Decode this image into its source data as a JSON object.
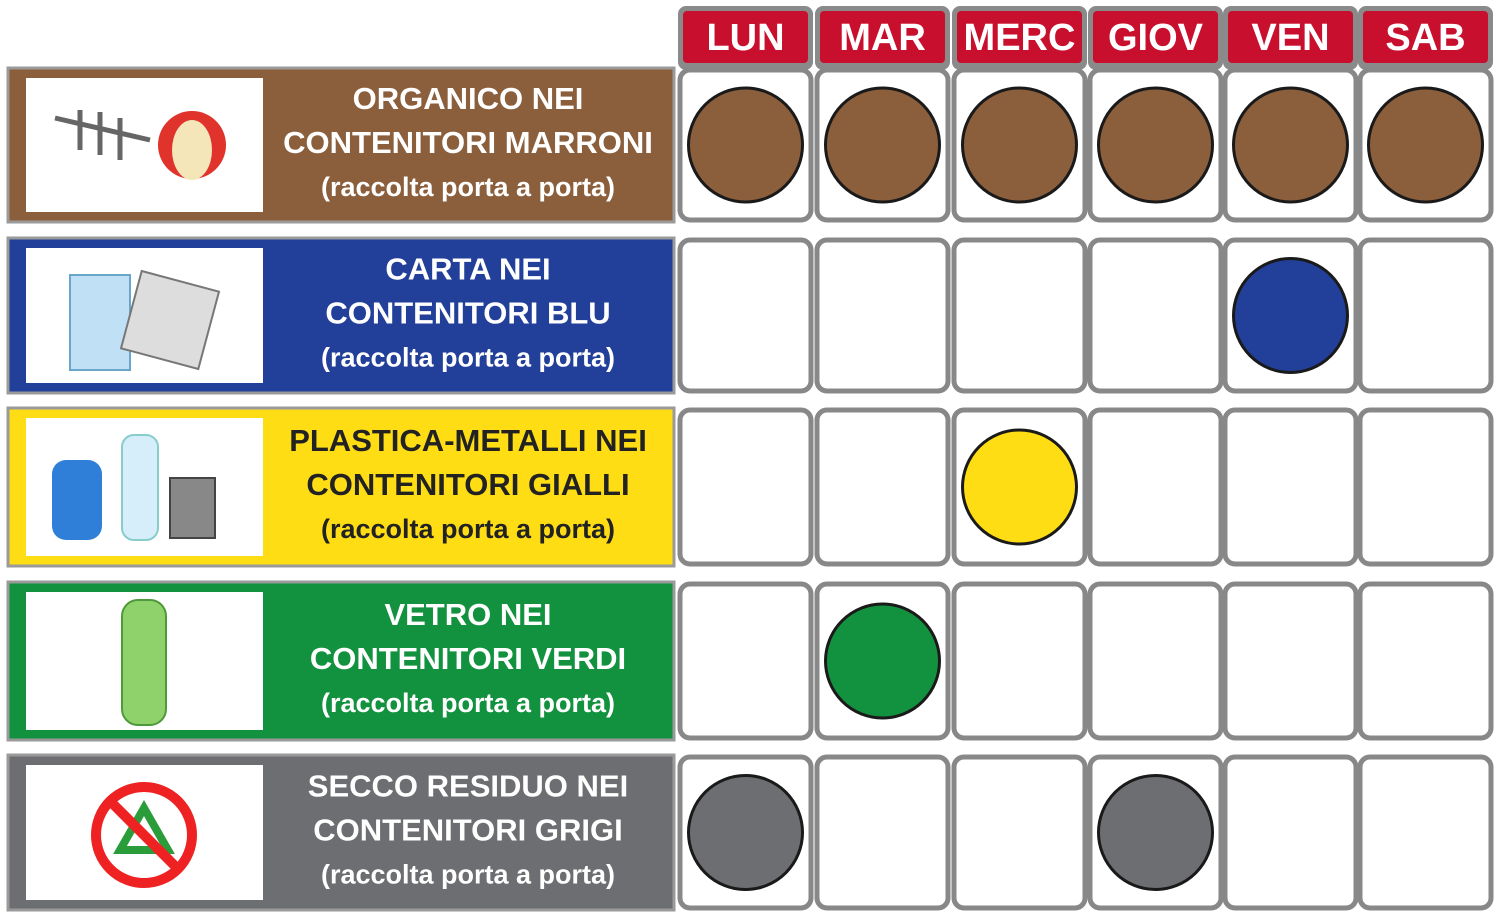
{
  "days": [
    "LUN",
    "MAR",
    "MERC",
    "GIOV",
    "VEN",
    "SAB"
  ],
  "rows": [
    {
      "lines": [
        "ORGANICO NEI",
        "CONTENITORI MARRONI"
      ],
      "note": "(raccolta porta a porta)",
      "color": "#8b5e3c",
      "text_color": "#ffffff",
      "collection": [
        true,
        true,
        true,
        true,
        true,
        true
      ]
    },
    {
      "lines": [
        "CARTA NEI",
        "CONTENITORI BLU"
      ],
      "note": "(raccolta porta a porta)",
      "color": "#223f99",
      "text_color": "#ffffff",
      "collection": [
        false,
        false,
        false,
        false,
        true,
        false
      ]
    },
    {
      "lines": [
        "PLASTICA-METALLI NEI",
        "CONTENITORI GIALLI"
      ],
      "note": "(raccolta porta a porta)",
      "color": "#ffdd15",
      "text_color": "#222222",
      "collection": [
        false,
        false,
        true,
        false,
        false,
        false
      ]
    },
    {
      "lines": [
        "VETRO NEI",
        "CONTENITORI VERDI"
      ],
      "note": "(raccolta porta a porta)",
      "color": "#12923f",
      "text_color": "#ffffff",
      "collection": [
        false,
        true,
        false,
        false,
        false,
        false
      ]
    },
    {
      "lines": [
        "SECCO RESIDUO NEI",
        "CONTENITORI GRIGI"
      ],
      "note": "(raccolta porta a porta)",
      "color": "#6d6e71",
      "text_color": "#ffffff",
      "collection": [
        true,
        false,
        false,
        true,
        false,
        false
      ]
    }
  ]
}
